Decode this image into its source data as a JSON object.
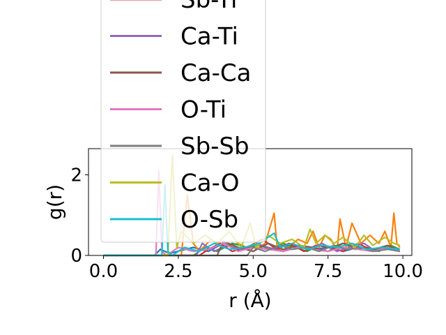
{
  "chart_data": {
    "type": "line",
    "xlabel": "r (Å)",
    "ylabel": "g(r)",
    "xlim": [
      -0.5,
      10.3
    ],
    "ylim": [
      0,
      2.65
    ],
    "xticks": [
      0.0,
      2.5,
      5.0,
      7.5,
      10.0
    ],
    "xtick_labels": [
      "0.0",
      "2.5",
      "5.0",
      "7.5",
      "10.0"
    ],
    "yticks": [
      0,
      2
    ],
    "ytick_labels": [
      "0",
      "2"
    ],
    "grid": false,
    "legend_placement": "upper-left, extending above the plot",
    "legend_visible_entries": [
      "Sb-Ti",
      "Ca-Ti",
      "Ca-Ca",
      "O-Ti",
      "Sb-Sb",
      "Ca-O",
      "O-Sb"
    ],
    "series": [
      {
        "name": "",
        "color": "#1f77b4",
        "x": [
          0,
          1.7,
          1.9,
          2.2,
          3.0,
          3.5,
          4.0,
          4.5,
          5.0,
          5.5,
          6.0,
          6.5,
          7.0,
          7.5,
          8.0,
          8.5,
          9.0,
          9.5,
          9.9
        ],
        "y": [
          0,
          0,
          0.15,
          0.05,
          0.2,
          0.1,
          0.3,
          0.15,
          0.2,
          0.15,
          0.25,
          0.2,
          0.15,
          0.2,
          0.1,
          0.2,
          0.15,
          0.2,
          0.1
        ]
      },
      {
        "name": "",
        "color": "#ff7f0e",
        "x": [
          0,
          2.6,
          2.8,
          3.0,
          3.2,
          3.6,
          4.0,
          4.5,
          5.0,
          5.4,
          5.7,
          5.8,
          6.0,
          6.5,
          6.8,
          7.0,
          7.2,
          7.4,
          7.6,
          7.8,
          7.9,
          8.1,
          8.3,
          8.6,
          8.9,
          9.2,
          9.4,
          9.6,
          9.7,
          9.8,
          9.9
        ],
        "y": [
          0,
          0,
          1.5,
          0.3,
          0.1,
          0.4,
          0.2,
          0.3,
          0.1,
          0.3,
          1.05,
          0.2,
          0.1,
          0.4,
          0.3,
          0.6,
          0.2,
          0.5,
          0.4,
          0.1,
          0.9,
          0.2,
          0.8,
          0.3,
          0.5,
          0.3,
          0.6,
          0.2,
          1.05,
          0.3,
          0.2
        ]
      },
      {
        "name": "",
        "color": "#2ca02c",
        "x": [
          0,
          3.0,
          3.4,
          3.8,
          4.3,
          4.8,
          5.2,
          5.6,
          6.0,
          6.4,
          6.8,
          7.2,
          7.6,
          8.0,
          8.4,
          8.8,
          9.2,
          9.6,
          9.9
        ],
        "y": [
          0,
          0,
          0.2,
          0.1,
          0.3,
          0.2,
          0.25,
          0.15,
          0.3,
          0.2,
          0.1,
          0.25,
          0.2,
          0.3,
          0.15,
          0.2,
          0.1,
          0.25,
          0.15
        ]
      },
      {
        "name": "Sb-Ti",
        "color": "#d62728",
        "x": [
          0,
          3.2,
          3.5,
          3.9,
          4.3,
          4.8,
          5.3,
          5.8,
          6.2,
          6.7,
          7.1,
          7.6,
          8.0,
          8.5,
          8.9,
          9.4,
          9.9
        ],
        "y": [
          0,
          0,
          0.15,
          0.3,
          0.1,
          0.2,
          0.4,
          0.15,
          0.3,
          0.1,
          0.25,
          0.2,
          0.1,
          0.3,
          0.15,
          0.2,
          0.1
        ]
      },
      {
        "name": "Ca-Ti",
        "color": "#9467bd",
        "x": [
          0,
          3.1,
          3.3,
          3.7,
          4.1,
          4.6,
          5.1,
          5.5,
          6.0,
          6.4,
          6.9,
          7.3,
          7.8,
          8.2,
          8.7,
          9.1,
          9.6,
          9.9
        ],
        "y": [
          0,
          0,
          0.3,
          0.1,
          0.25,
          0.15,
          0.3,
          0.2,
          0.1,
          0.25,
          0.15,
          0.3,
          0.1,
          0.2,
          0.3,
          0.1,
          0.2,
          0.15
        ]
      },
      {
        "name": "Ca-Ca",
        "color": "#8c564b",
        "x": [
          0,
          3.8,
          4.0,
          4.5,
          5.0,
          5.5,
          6.0,
          6.5,
          7.0,
          7.5,
          8.0,
          8.5,
          9.0,
          9.5,
          9.9
        ],
        "y": [
          0,
          0,
          0.35,
          0.2,
          0.1,
          0.3,
          0.15,
          0.25,
          0.2,
          0.1,
          0.3,
          0.2,
          0.15,
          0.25,
          0.1
        ]
      },
      {
        "name": "O-Ti",
        "color": "#e377c2",
        "x": [
          0,
          1.75,
          1.85,
          1.95,
          2.1,
          2.5,
          3.0,
          3.5,
          4.0,
          4.5,
          5.0,
          5.5,
          6.0,
          6.5,
          7.0,
          7.5,
          8.0,
          8.5,
          9.0,
          9.5,
          9.9
        ],
        "y": [
          0,
          0,
          2.1,
          0.1,
          0.0,
          0.2,
          0.1,
          0.15,
          0.3,
          0.1,
          0.2,
          0.15,
          0.1,
          0.2,
          0.15,
          0.1,
          0.2,
          0.15,
          0.1,
          0.2,
          0.1
        ]
      },
      {
        "name": "Sb-Sb",
        "color": "#7f7f7f",
        "x": [
          0,
          4.8,
          5.0,
          5.4,
          5.9,
          6.3,
          6.8,
          7.2,
          7.7,
          8.1,
          8.6,
          9.0,
          9.5,
          9.9
        ],
        "y": [
          0,
          0,
          0.2,
          0.1,
          0.25,
          0.15,
          0.2,
          0.1,
          0.25,
          0.15,
          0.2,
          0.1,
          0.15,
          0.1
        ]
      },
      {
        "name": "Ca-O",
        "color": "#bcbd22",
        "x": [
          0,
          2.15,
          2.3,
          2.45,
          2.6,
          3.0,
          3.4,
          3.8,
          4.2,
          4.6,
          4.9,
          5.1,
          5.5,
          5.9,
          6.3,
          6.7,
          6.9,
          7.1,
          7.4,
          7.7,
          8.0,
          8.4,
          8.7,
          9.0,
          9.4,
          9.7,
          9.9
        ],
        "y": [
          0,
          0,
          2.5,
          0.2,
          0.6,
          0.3,
          0.5,
          0.3,
          0.6,
          0.2,
          0.8,
          0.2,
          0.5,
          0.3,
          0.4,
          0.2,
          0.65,
          0.3,
          0.5,
          0.3,
          0.45,
          0.2,
          0.5,
          0.25,
          0.45,
          0.3,
          0.25
        ]
      },
      {
        "name": "O-Sb",
        "color": "#17becf",
        "x": [
          0,
          1.95,
          2.05,
          2.15,
          2.3,
          2.7,
          3.2,
          3.7,
          4.2,
          4.7,
          5.2,
          5.7,
          5.9,
          6.3,
          6.8,
          7.3,
          7.8,
          8.3,
          8.8,
          9.3,
          9.9
        ],
        "y": [
          0,
          0,
          1.75,
          0.1,
          0.0,
          0.2,
          0.1,
          0.3,
          0.15,
          0.2,
          0.3,
          0.55,
          0.2,
          0.3,
          0.15,
          0.25,
          0.2,
          0.3,
          0.15,
          0.2,
          0.15
        ]
      }
    ]
  }
}
